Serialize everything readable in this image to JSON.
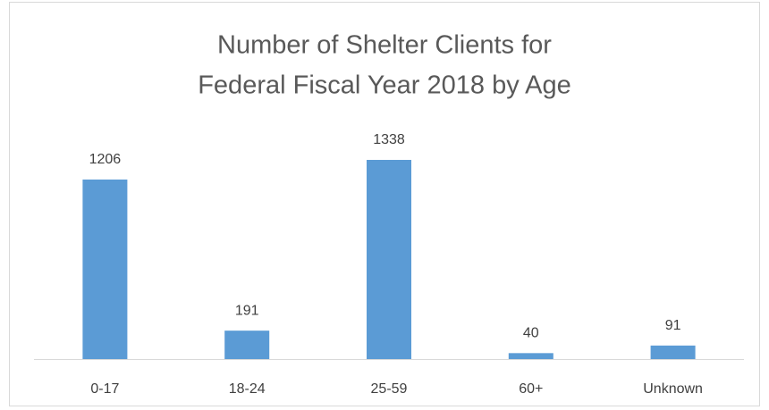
{
  "chart_data": {
    "type": "bar",
    "title": [
      "Number of Shelter Clients for",
      "Federal Fiscal Year 2018 by Age"
    ],
    "categories": [
      "0-17",
      "18-24",
      "25-59",
      "60+",
      "Unknown"
    ],
    "values": [
      1206,
      191,
      1338,
      40,
      91
    ],
    "color": "#5b9bd5"
  }
}
